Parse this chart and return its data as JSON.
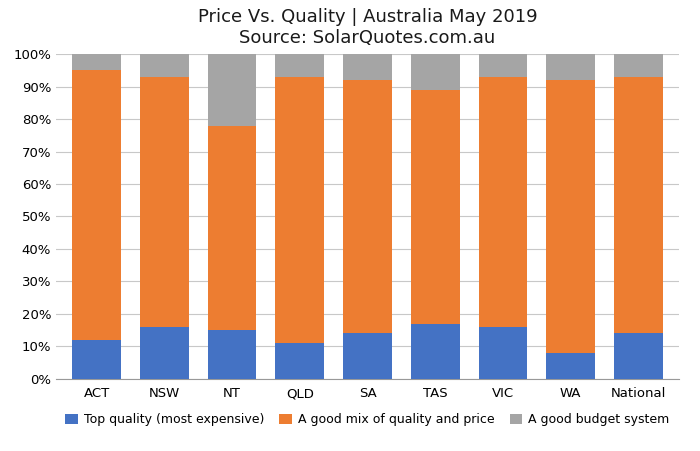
{
  "categories": [
    "ACT",
    "NSW",
    "NT",
    "QLD",
    "SA",
    "TAS",
    "VIC",
    "WA",
    "National"
  ],
  "top_quality": [
    12,
    16,
    15,
    11,
    14,
    17,
    16,
    8,
    14
  ],
  "good_mix": [
    83,
    77,
    63,
    82,
    78,
    72,
    77,
    84,
    79
  ],
  "budget": [
    5,
    7,
    22,
    7,
    8,
    11,
    7,
    8,
    7
  ],
  "colors": {
    "top_quality": "#4472C4",
    "good_mix": "#ED7D31",
    "budget": "#A5A5A5"
  },
  "title_line1": "Price Vs. Quality | Australia May 2019",
  "title_line2": "Source: SolarQuotes.com.au",
  "ylabel_ticks": [
    "0%",
    "10%",
    "20%",
    "30%",
    "40%",
    "50%",
    "60%",
    "70%",
    "80%",
    "90%",
    "100%"
  ],
  "legend_labels": [
    "Top quality (most expensive)",
    "A good mix of quality and price",
    "A good budget system"
  ],
  "background_color": "#FFFFFF",
  "grid_color": "#C8C8C8",
  "ylim": [
    0,
    100
  ],
  "bar_width": 0.72,
  "title_fontsize": 13,
  "tick_fontsize": 9.5
}
